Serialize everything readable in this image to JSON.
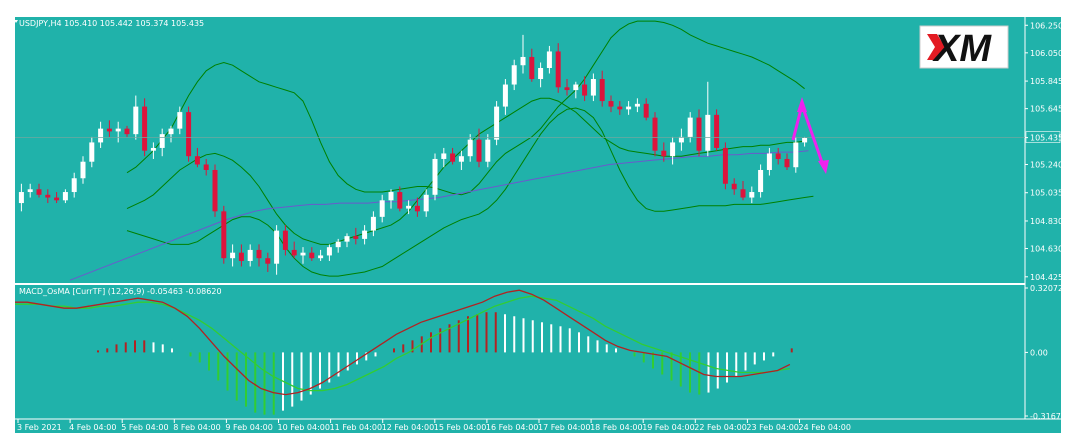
{
  "colors": {
    "background": "#20b2aa",
    "bull": "#ffffff",
    "bear": "#dc143c",
    "bands": "#008000",
    "ma": "#6a5acd",
    "macd_line": "#b22222",
    "signal_line": "#32cd32",
    "arrow": "#ee22ee"
  },
  "main": {
    "info": "USDJPY,H4  105.410 105.442 105.374 105.435",
    "price_ticks": [
      "106.250",
      "106.050",
      "105.845",
      "105.645",
      "105.435",
      "105.240",
      "105.035",
      "104.830",
      "104.630",
      "104.425"
    ],
    "current_price": "105.435",
    "logo_text": "XM"
  },
  "macd": {
    "info": "MACD_OsMA [CurrTF] (12,26,9) -0.05463 -0.08620",
    "ticks": [
      "0.32072",
      "0.00",
      "-0.31674"
    ]
  },
  "time_labels": [
    "3 Feb 2021",
    "4 Feb 04:00",
    "5 Feb 04:00",
    "8 Feb 04:00",
    "9 Feb 04:00",
    "10 Feb 04:00",
    "11 Feb 04:00",
    "12 Feb 04:00",
    "15 Feb 04:00",
    "16 Feb 04:00",
    "17 Feb 04:00",
    "18 Feb 04:00",
    "19 Feb 04:00",
    "22 Feb 04:00",
    "23 Feb 04:00",
    "24 Feb 04:00"
  ],
  "chart_data": {
    "type": "candlestick",
    "symbol": "USDJPY",
    "timeframe": "H4",
    "ylim": [
      104.38,
      106.31
    ],
    "candles": [
      {
        "o": 104.96,
        "h": 105.1,
        "l": 104.9,
        "c": 105.04
      },
      {
        "o": 105.04,
        "h": 105.1,
        "l": 105.0,
        "c": 105.06
      },
      {
        "o": 105.06,
        "h": 105.1,
        "l": 105.0,
        "c": 105.02
      },
      {
        "o": 105.02,
        "h": 105.06,
        "l": 104.96,
        "c": 105.0
      },
      {
        "o": 105.0,
        "h": 105.04,
        "l": 104.96,
        "c": 104.98
      },
      {
        "o": 104.98,
        "h": 105.06,
        "l": 104.96,
        "c": 105.04
      },
      {
        "o": 105.04,
        "h": 105.18,
        "l": 105.0,
        "c": 105.14
      },
      {
        "o": 105.14,
        "h": 105.3,
        "l": 105.1,
        "c": 105.26
      },
      {
        "o": 105.26,
        "h": 105.44,
        "l": 105.22,
        "c": 105.4
      },
      {
        "o": 105.4,
        "h": 105.55,
        "l": 105.36,
        "c": 105.5
      },
      {
        "o": 105.5,
        "h": 105.56,
        "l": 105.44,
        "c": 105.48
      },
      {
        "o": 105.48,
        "h": 105.55,
        "l": 105.4,
        "c": 105.5
      },
      {
        "o": 105.5,
        "h": 105.52,
        "l": 105.44,
        "c": 105.46
      },
      {
        "o": 105.46,
        "h": 105.74,
        "l": 105.42,
        "c": 105.66
      },
      {
        "o": 105.66,
        "h": 105.72,
        "l": 105.3,
        "c": 105.34
      },
      {
        "o": 105.34,
        "h": 105.4,
        "l": 105.28,
        "c": 105.36
      },
      {
        "o": 105.36,
        "h": 105.5,
        "l": 105.3,
        "c": 105.46
      },
      {
        "o": 105.46,
        "h": 105.52,
        "l": 105.4,
        "c": 105.5
      },
      {
        "o": 105.5,
        "h": 105.66,
        "l": 105.46,
        "c": 105.62
      },
      {
        "o": 105.62,
        "h": 105.66,
        "l": 105.26,
        "c": 105.3
      },
      {
        "o": 105.3,
        "h": 105.36,
        "l": 105.22,
        "c": 105.24
      },
      {
        "o": 105.24,
        "h": 105.28,
        "l": 105.16,
        "c": 105.2
      },
      {
        "o": 105.2,
        "h": 105.24,
        "l": 104.86,
        "c": 104.9
      },
      {
        "o": 104.9,
        "h": 104.94,
        "l": 104.52,
        "c": 104.56
      },
      {
        "o": 104.56,
        "h": 104.66,
        "l": 104.5,
        "c": 104.6
      },
      {
        "o": 104.6,
        "h": 104.66,
        "l": 104.5,
        "c": 104.54
      },
      {
        "o": 104.54,
        "h": 104.66,
        "l": 104.5,
        "c": 104.62
      },
      {
        "o": 104.62,
        "h": 104.66,
        "l": 104.5,
        "c": 104.56
      },
      {
        "o": 104.56,
        "h": 104.6,
        "l": 104.46,
        "c": 104.52
      },
      {
        "o": 104.52,
        "h": 104.8,
        "l": 104.44,
        "c": 104.76
      },
      {
        "o": 104.76,
        "h": 104.8,
        "l": 104.58,
        "c": 104.62
      },
      {
        "o": 104.62,
        "h": 104.68,
        "l": 104.56,
        "c": 104.58
      },
      {
        "o": 104.58,
        "h": 104.64,
        "l": 104.52,
        "c": 104.6
      },
      {
        "o": 104.6,
        "h": 104.64,
        "l": 104.54,
        "c": 104.56
      },
      {
        "o": 104.56,
        "h": 104.62,
        "l": 104.54,
        "c": 104.58
      },
      {
        "o": 104.58,
        "h": 104.66,
        "l": 104.54,
        "c": 104.64
      },
      {
        "o": 104.64,
        "h": 104.7,
        "l": 104.6,
        "c": 104.68
      },
      {
        "o": 104.68,
        "h": 104.74,
        "l": 104.64,
        "c": 104.72
      },
      {
        "o": 104.72,
        "h": 104.78,
        "l": 104.66,
        "c": 104.7
      },
      {
        "o": 104.7,
        "h": 104.8,
        "l": 104.66,
        "c": 104.76
      },
      {
        "o": 104.76,
        "h": 104.9,
        "l": 104.72,
        "c": 104.86
      },
      {
        "o": 104.86,
        "h": 105.02,
        "l": 104.82,
        "c": 104.98
      },
      {
        "o": 104.98,
        "h": 105.06,
        "l": 104.92,
        "c": 105.04
      },
      {
        "o": 105.04,
        "h": 105.08,
        "l": 104.9,
        "c": 104.92
      },
      {
        "o": 104.92,
        "h": 104.98,
        "l": 104.88,
        "c": 104.94
      },
      {
        "o": 104.94,
        "h": 105.0,
        "l": 104.86,
        "c": 104.9
      },
      {
        "o": 104.9,
        "h": 105.06,
        "l": 104.86,
        "c": 105.02
      },
      {
        "o": 105.02,
        "h": 105.32,
        "l": 104.98,
        "c": 105.28
      },
      {
        "o": 105.28,
        "h": 105.36,
        "l": 105.22,
        "c": 105.32
      },
      {
        "o": 105.32,
        "h": 105.36,
        "l": 105.24,
        "c": 105.26
      },
      {
        "o": 105.26,
        "h": 105.34,
        "l": 105.2,
        "c": 105.3
      },
      {
        "o": 105.3,
        "h": 105.46,
        "l": 105.26,
        "c": 105.42
      },
      {
        "o": 105.42,
        "h": 105.5,
        "l": 105.22,
        "c": 105.26
      },
      {
        "o": 105.26,
        "h": 105.46,
        "l": 105.22,
        "c": 105.42
      },
      {
        "o": 105.42,
        "h": 105.7,
        "l": 105.38,
        "c": 105.66
      },
      {
        "o": 105.66,
        "h": 105.86,
        "l": 105.6,
        "c": 105.82
      },
      {
        "o": 105.82,
        "h": 106.0,
        "l": 105.78,
        "c": 105.96
      },
      {
        "o": 105.96,
        "h": 106.18,
        "l": 105.9,
        "c": 106.02
      },
      {
        "o": 106.02,
        "h": 106.08,
        "l": 105.84,
        "c": 105.86
      },
      {
        "o": 105.86,
        "h": 105.98,
        "l": 105.8,
        "c": 105.94
      },
      {
        "o": 105.94,
        "h": 106.1,
        "l": 105.9,
        "c": 106.06
      },
      {
        "o": 106.06,
        "h": 106.12,
        "l": 105.76,
        "c": 105.8
      },
      {
        "o": 105.8,
        "h": 105.86,
        "l": 105.74,
        "c": 105.78
      },
      {
        "o": 105.78,
        "h": 105.84,
        "l": 105.72,
        "c": 105.82
      },
      {
        "o": 105.82,
        "h": 105.88,
        "l": 105.7,
        "c": 105.74
      },
      {
        "o": 105.74,
        "h": 105.9,
        "l": 105.7,
        "c": 105.86
      },
      {
        "o": 105.86,
        "h": 105.92,
        "l": 105.66,
        "c": 105.7
      },
      {
        "o": 105.7,
        "h": 105.74,
        "l": 105.62,
        "c": 105.66
      },
      {
        "o": 105.66,
        "h": 105.7,
        "l": 105.6,
        "c": 105.64
      },
      {
        "o": 105.64,
        "h": 105.7,
        "l": 105.6,
        "c": 105.66
      },
      {
        "o": 105.66,
        "h": 105.72,
        "l": 105.62,
        "c": 105.68
      },
      {
        "o": 105.68,
        "h": 105.72,
        "l": 105.56,
        "c": 105.58
      },
      {
        "o": 105.58,
        "h": 105.62,
        "l": 105.3,
        "c": 105.34
      },
      {
        "o": 105.34,
        "h": 105.4,
        "l": 105.26,
        "c": 105.3
      },
      {
        "o": 105.3,
        "h": 105.44,
        "l": 105.24,
        "c": 105.4
      },
      {
        "o": 105.4,
        "h": 105.5,
        "l": 105.34,
        "c": 105.44
      },
      {
        "o": 105.44,
        "h": 105.62,
        "l": 105.4,
        "c": 105.58
      },
      {
        "o": 105.58,
        "h": 105.64,
        "l": 105.3,
        "c": 105.34
      },
      {
        "o": 105.34,
        "h": 105.84,
        "l": 105.3,
        "c": 105.6
      },
      {
        "o": 105.6,
        "h": 105.64,
        "l": 105.34,
        "c": 105.36
      },
      {
        "o": 105.36,
        "h": 105.4,
        "l": 105.06,
        "c": 105.1
      },
      {
        "o": 105.1,
        "h": 105.14,
        "l": 105.02,
        "c": 105.06
      },
      {
        "o": 105.06,
        "h": 105.12,
        "l": 104.98,
        "c": 105.0
      },
      {
        "o": 105.0,
        "h": 105.08,
        "l": 104.96,
        "c": 105.04
      },
      {
        "o": 105.04,
        "h": 105.24,
        "l": 105.0,
        "c": 105.2
      },
      {
        "o": 105.2,
        "h": 105.36,
        "l": 105.16,
        "c": 105.32
      },
      {
        "o": 105.32,
        "h": 105.36,
        "l": 105.24,
        "c": 105.28
      },
      {
        "o": 105.28,
        "h": 105.32,
        "l": 105.2,
        "c": 105.22
      },
      {
        "o": 105.22,
        "h": 105.44,
        "l": 105.18,
        "c": 105.4
      },
      {
        "o": 105.4,
        "h": 105.44,
        "l": 105.37,
        "c": 105.435
      }
    ],
    "bands_upper": [
      105.18,
      105.22,
      105.28,
      105.34,
      105.42,
      105.5,
      105.62,
      105.74,
      105.84,
      105.92,
      105.96,
      105.98,
      105.96,
      105.92,
      105.88,
      105.84,
      105.82,
      105.8,
      105.78,
      105.76,
      105.7,
      105.56,
      105.4,
      105.26,
      105.16,
      105.1,
      105.06,
      105.04,
      105.04,
      105.04,
      105.05,
      105.06,
      105.07,
      105.08,
      105.08,
      105.07,
      105.05,
      105.03,
      105.02,
      105.04,
      105.1,
      105.18,
      105.26,
      105.32,
      105.36,
      105.4,
      105.44,
      105.5,
      105.58,
      105.66,
      105.72,
      105.78,
      105.86,
      105.96,
      106.06,
      106.16,
      106.22,
      106.26,
      106.28,
      106.28,
      106.28,
      106.27,
      106.25,
      106.22,
      106.18,
      106.15,
      106.12,
      106.1,
      106.08,
      106.06,
      106.04,
      106.02,
      105.99,
      105.96,
      105.92,
      105.88,
      105.84,
      105.79
    ],
    "bands_lower": [
      104.76,
      104.74,
      104.72,
      104.7,
      104.68,
      104.66,
      104.66,
      104.66,
      104.68,
      104.72,
      104.76,
      104.8,
      104.84,
      104.86,
      104.86,
      104.84,
      104.8,
      104.74,
      104.64,
      104.56,
      104.5,
      104.46,
      104.44,
      104.43,
      104.43,
      104.44,
      104.45,
      104.46,
      104.48,
      104.5,
      104.54,
      104.58,
      104.62,
      104.66,
      104.7,
      104.74,
      104.78,
      104.81,
      104.84,
      104.86,
      104.88,
      104.92,
      104.98,
      105.06,
      105.16,
      105.26,
      105.36,
      105.46,
      105.54,
      105.6,
      105.64,
      105.65,
      105.63,
      105.58,
      105.48,
      105.34,
      105.2,
      105.08,
      104.98,
      104.92,
      104.9,
      104.9,
      104.91,
      104.92,
      104.93,
      104.94,
      104.94,
      104.94,
      104.94,
      104.95,
      104.95,
      104.95,
      104.95,
      104.96,
      104.97,
      104.98,
      104.99,
      105.0,
      105.01
    ],
    "bands_middle": [
      104.92,
      104.95,
      104.98,
      105.02,
      105.08,
      105.14,
      105.2,
      105.24,
      105.28,
      105.31,
      105.32,
      105.3,
      105.27,
      105.22,
      105.16,
      105.08,
      104.98,
      104.88,
      104.8,
      104.74,
      104.7,
      104.68,
      104.66,
      104.66,
      104.68,
      104.7,
      104.72,
      104.74,
      104.76,
      104.78,
      104.8,
      104.84,
      104.9,
      104.98,
      105.06,
      105.14,
      105.22,
      105.28,
      105.34,
      105.4,
      105.46,
      105.5,
      105.54,
      105.58,
      105.62,
      105.66,
      105.7,
      105.72,
      105.72,
      105.7,
      105.66,
      105.62,
      105.56,
      105.5,
      105.44,
      105.4,
      105.36,
      105.34,
      105.33,
      105.32,
      105.31,
      105.3,
      105.3,
      105.3,
      105.31,
      105.32,
      105.33,
      105.34,
      105.35,
      105.36,
      105.37,
      105.37,
      105.38,
      105.38,
      105.39,
      105.4,
      105.4,
      105.41
    ],
    "ma": [
      104.4,
      104.44,
      104.48,
      104.52,
      104.56,
      104.6,
      104.64,
      104.68,
      104.72,
      104.76,
      104.8,
      104.84,
      104.87,
      104.9,
      104.92,
      104.93,
      104.94,
      104.95,
      104.95,
      104.96,
      104.96,
      104.96,
      104.97,
      104.97,
      104.98,
      104.99,
      105.0,
      105.02,
      105.04,
      105.06,
      105.08,
      105.1,
      105.12,
      105.14,
      105.16,
      105.18,
      105.2,
      105.22,
      105.24,
      105.25,
      105.26,
      105.27,
      105.28,
      105.29,
      105.3,
      105.3,
      105.31,
      105.31,
      105.32,
      105.32,
      105.33,
      105.33,
      105.34
    ],
    "macd": {
      "ylim": [
        -0.31674,
        0.32072
      ],
      "hist": [
        0.0,
        0.0,
        0.0,
        0.0,
        0.0,
        0.0,
        0.0,
        0.0,
        0.01,
        0.02,
        0.04,
        0.05,
        0.06,
        0.06,
        0.05,
        0.04,
        0.02,
        0.0,
        -0.02,
        -0.05,
        -0.09,
        -0.14,
        -0.19,
        -0.24,
        -0.27,
        -0.3,
        -0.31,
        -0.31,
        -0.29,
        -0.27,
        -0.24,
        -0.21,
        -0.18,
        -0.15,
        -0.12,
        -0.09,
        -0.06,
        -0.04,
        -0.02,
        0.0,
        0.02,
        0.04,
        0.06,
        0.08,
        0.1,
        0.12,
        0.14,
        0.16,
        0.18,
        0.19,
        0.2,
        0.2,
        0.19,
        0.18,
        0.17,
        0.16,
        0.15,
        0.14,
        0.13,
        0.12,
        0.1,
        0.08,
        0.06,
        0.04,
        0.02,
        0.0,
        -0.02,
        -0.05,
        -0.08,
        -0.11,
        -0.14,
        -0.17,
        -0.2,
        -0.21,
        -0.2,
        -0.18,
        -0.15,
        -0.12,
        -0.09,
        -0.06,
        -0.04,
        -0.02,
        0.0,
        0.02
      ],
      "macd_line": [
        0.25,
        0.25,
        0.24,
        0.23,
        0.22,
        0.22,
        0.23,
        0.24,
        0.25,
        0.26,
        0.27,
        0.26,
        0.25,
        0.22,
        0.18,
        0.12,
        0.05,
        -0.02,
        -0.08,
        -0.14,
        -0.18,
        -0.2,
        -0.21,
        -0.2,
        -0.18,
        -0.15,
        -0.11,
        -0.07,
        -0.03,
        0.01,
        0.05,
        0.09,
        0.12,
        0.15,
        0.17,
        0.19,
        0.21,
        0.23,
        0.25,
        0.28,
        0.3,
        0.31,
        0.29,
        0.26,
        0.22,
        0.18,
        0.14,
        0.1,
        0.06,
        0.03,
        0.01,
        0.0,
        -0.01,
        -0.02,
        -0.05,
        -0.08,
        -0.11,
        -0.12,
        -0.12,
        -0.12,
        -0.11,
        -0.1,
        -0.09,
        -0.06
      ],
      "signal_line": [
        0.24,
        0.24,
        0.24,
        0.23,
        0.23,
        0.22,
        0.22,
        0.23,
        0.23,
        0.24,
        0.25,
        0.25,
        0.24,
        0.22,
        0.19,
        0.16,
        0.12,
        0.07,
        0.02,
        -0.03,
        -0.08,
        -0.12,
        -0.15,
        -0.18,
        -0.19,
        -0.19,
        -0.18,
        -0.16,
        -0.13,
        -0.1,
        -0.07,
        -0.03,
        0.0,
        0.04,
        0.08,
        0.11,
        0.14,
        0.17,
        0.2,
        0.23,
        0.25,
        0.27,
        0.28,
        0.27,
        0.26,
        0.23,
        0.2,
        0.17,
        0.13,
        0.1,
        0.07,
        0.04,
        0.02,
        0.0,
        -0.02,
        -0.04,
        -0.06,
        -0.08,
        -0.09,
        -0.1,
        -0.1,
        -0.1,
        -0.09,
        -0.08
      ]
    }
  }
}
